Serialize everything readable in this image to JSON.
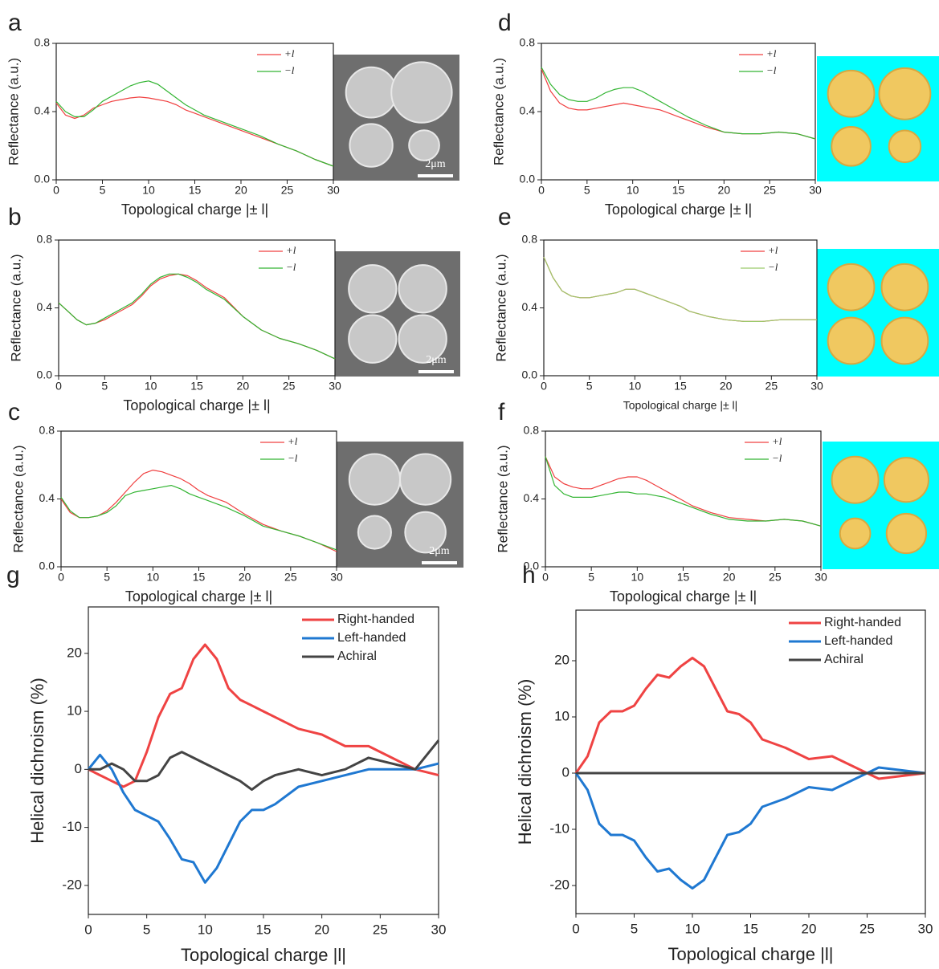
{
  "chart_data": [
    {
      "type": "line",
      "label": "a",
      "xlabel": "Topological charge |± l|",
      "ylabel": "Reflectance (a.u.)",
      "legend": "upper right",
      "scale_bar": "2μm",
      "x": [
        0,
        1,
        2,
        3,
        4,
        5,
        6,
        7,
        8,
        9,
        10,
        11,
        12,
        13,
        14,
        15,
        16,
        18,
        20,
        22,
        24,
        26,
        28,
        30
      ],
      "series": [
        {
          "name": "+l",
          "color": "#f04040",
          "values": [
            0.45,
            0.38,
            0.36,
            0.38,
            0.42,
            0.44,
            0.46,
            0.47,
            0.48,
            0.485,
            0.48,
            0.47,
            0.46,
            0.44,
            0.41,
            0.39,
            0.37,
            0.33,
            0.29,
            0.25,
            0.21,
            0.17,
            0.12,
            0.08
          ]
        },
        {
          "name": "−l",
          "color": "#33b533",
          "values": [
            0.46,
            0.4,
            0.37,
            0.37,
            0.41,
            0.46,
            0.49,
            0.52,
            0.55,
            0.57,
            0.58,
            0.56,
            0.52,
            0.48,
            0.44,
            0.41,
            0.38,
            0.34,
            0.3,
            0.26,
            0.21,
            0.17,
            0.12,
            0.08
          ]
        }
      ],
      "xlim": [
        0,
        30
      ],
      "ylim": [
        0,
        0.8
      ],
      "xticks": [
        0,
        5,
        10,
        15,
        20,
        25,
        30
      ],
      "yticks": [
        {
          "value": 0,
          "label": "0.0"
        },
        {
          "value": 0.4,
          "label": "0.4"
        },
        {
          "value": 0.8,
          "label": "0.8"
        }
      ]
    },
    {
      "type": "line",
      "label": "b",
      "xlabel": "Topological charge |± l|",
      "ylabel": "Reflectance (a.u.)",
      "legend": "upper right",
      "scale_bar": "2μm",
      "x": [
        0,
        1,
        2,
        3,
        4,
        5,
        6,
        7,
        8,
        9,
        10,
        11,
        12,
        13,
        14,
        15,
        16,
        18,
        20,
        22,
        24,
        26,
        28,
        30
      ],
      "series": [
        {
          "name": "+l",
          "color": "#f04040",
          "values": [
            0.43,
            0.38,
            0.33,
            0.3,
            0.31,
            0.33,
            0.36,
            0.39,
            0.42,
            0.47,
            0.53,
            0.57,
            0.59,
            0.6,
            0.59,
            0.56,
            0.52,
            0.46,
            0.35,
            0.27,
            0.22,
            0.19,
            0.15,
            0.1
          ]
        },
        {
          "name": "−l",
          "color": "#33b533",
          "values": [
            0.43,
            0.38,
            0.33,
            0.3,
            0.31,
            0.34,
            0.37,
            0.4,
            0.43,
            0.48,
            0.54,
            0.58,
            0.6,
            0.6,
            0.58,
            0.55,
            0.51,
            0.45,
            0.35,
            0.27,
            0.22,
            0.19,
            0.15,
            0.1
          ]
        }
      ],
      "xlim": [
        0,
        30
      ],
      "ylim": [
        0,
        0.8
      ],
      "xticks": [
        0,
        5,
        10,
        15,
        20,
        25,
        30
      ],
      "yticks": [
        {
          "value": 0,
          "label": "0.0"
        },
        {
          "value": 0.4,
          "label": "0.4"
        },
        {
          "value": 0.8,
          "label": "0.8"
        }
      ]
    },
    {
      "type": "line",
      "label": "c",
      "xlabel": "Topological charge |± l|",
      "ylabel": "Reflectance (a.u.)",
      "legend": "upper right",
      "scale_bar": "2μm",
      "x": [
        0,
        1,
        2,
        3,
        4,
        5,
        6,
        7,
        8,
        9,
        10,
        11,
        12,
        13,
        14,
        15,
        16,
        18,
        20,
        22,
        24,
        26,
        28,
        30
      ],
      "series": [
        {
          "name": "+l",
          "color": "#f04040",
          "values": [
            0.4,
            0.32,
            0.29,
            0.29,
            0.3,
            0.33,
            0.38,
            0.44,
            0.5,
            0.55,
            0.57,
            0.56,
            0.54,
            0.52,
            0.49,
            0.45,
            0.42,
            0.38,
            0.31,
            0.25,
            0.21,
            0.18,
            0.14,
            0.09
          ]
        },
        {
          "name": "−l",
          "color": "#33b533",
          "values": [
            0.41,
            0.33,
            0.29,
            0.29,
            0.3,
            0.32,
            0.36,
            0.42,
            0.44,
            0.45,
            0.46,
            0.47,
            0.48,
            0.46,
            0.43,
            0.41,
            0.39,
            0.35,
            0.3,
            0.24,
            0.21,
            0.18,
            0.14,
            0.1
          ]
        }
      ],
      "xlim": [
        0,
        30
      ],
      "ylim": [
        0,
        0.8
      ],
      "xticks": [
        0,
        5,
        10,
        15,
        20,
        25,
        30
      ],
      "yticks": [
        {
          "value": 0,
          "label": "0.0"
        },
        {
          "value": 0.4,
          "label": "0.4"
        },
        {
          "value": 0.8,
          "label": "0.8"
        }
      ]
    },
    {
      "type": "line",
      "label": "d",
      "xlabel": "Topological charge |± l|",
      "ylabel": "Reflectance (a.u.)",
      "legend": "upper right",
      "x": [
        0,
        1,
        2,
        3,
        4,
        5,
        6,
        7,
        8,
        9,
        10,
        11,
        12,
        13,
        14,
        15,
        16,
        18,
        20,
        22,
        24,
        26,
        28,
        30
      ],
      "series": [
        {
          "name": "+l",
          "color": "#f04040",
          "values": [
            0.65,
            0.52,
            0.45,
            0.42,
            0.41,
            0.41,
            0.42,
            0.43,
            0.44,
            0.45,
            0.44,
            0.43,
            0.42,
            0.41,
            0.39,
            0.37,
            0.35,
            0.31,
            0.28,
            0.27,
            0.27,
            0.28,
            0.27,
            0.24
          ]
        },
        {
          "name": "−l",
          "color": "#33b533",
          "values": [
            0.66,
            0.56,
            0.5,
            0.47,
            0.46,
            0.46,
            0.48,
            0.51,
            0.53,
            0.54,
            0.54,
            0.52,
            0.49,
            0.46,
            0.43,
            0.4,
            0.37,
            0.32,
            0.28,
            0.27,
            0.27,
            0.28,
            0.27,
            0.24
          ]
        }
      ],
      "xlim": [
        0,
        30
      ],
      "ylim": [
        0,
        0.8
      ],
      "xticks": [
        0,
        5,
        10,
        15,
        20,
        25,
        30
      ],
      "yticks": [
        {
          "value": 0,
          "label": "0.0"
        },
        {
          "value": 0.4,
          "label": "0.4"
        },
        {
          "value": 0.8,
          "label": "0.8"
        }
      ]
    },
    {
      "type": "line",
      "label": "e",
      "xlabel": "Topological charge |± l|",
      "ylabel": "Reflectance (a.u.)",
      "legend": "upper right",
      "x": [
        0,
        1,
        2,
        3,
        4,
        5,
        6,
        7,
        8,
        9,
        10,
        11,
        12,
        13,
        14,
        15,
        16,
        18,
        20,
        22,
        24,
        26,
        28,
        30
      ],
      "series": [
        {
          "name": "+l",
          "color": "#f04040",
          "values": [
            0.7,
            0.58,
            0.5,
            0.47,
            0.46,
            0.46,
            0.47,
            0.48,
            0.49,
            0.51,
            0.51,
            0.49,
            0.47,
            0.45,
            0.43,
            0.41,
            0.38,
            0.35,
            0.33,
            0.32,
            0.32,
            0.33,
            0.33,
            0.33
          ]
        },
        {
          "name": "−l",
          "color": "#9bc96b",
          "values": [
            0.7,
            0.58,
            0.5,
            0.47,
            0.46,
            0.46,
            0.47,
            0.48,
            0.49,
            0.51,
            0.51,
            0.49,
            0.47,
            0.45,
            0.43,
            0.41,
            0.38,
            0.35,
            0.33,
            0.32,
            0.32,
            0.33,
            0.33,
            0.33
          ]
        }
      ],
      "xlim": [
        0,
        30
      ],
      "ylim": [
        0,
        0.8
      ],
      "xticks": [
        0,
        5,
        10,
        15,
        20,
        25,
        30
      ],
      "yticks": [
        {
          "value": 0,
          "label": "0.0"
        },
        {
          "value": 0.4,
          "label": "0.4"
        },
        {
          "value": 0.8,
          "label": "0.8"
        }
      ]
    },
    {
      "type": "line",
      "label": "f",
      "xlabel": "Topological charge |± l|",
      "ylabel": "Reflectance (a.u.)",
      "legend": "upper right",
      "x": [
        0,
        1,
        2,
        3,
        4,
        5,
        6,
        7,
        8,
        9,
        10,
        11,
        12,
        13,
        14,
        15,
        16,
        18,
        20,
        22,
        24,
        26,
        28,
        30
      ],
      "series": [
        {
          "name": "+l",
          "color": "#f04040",
          "values": [
            0.65,
            0.53,
            0.49,
            0.47,
            0.46,
            0.46,
            0.48,
            0.5,
            0.52,
            0.53,
            0.53,
            0.51,
            0.48,
            0.45,
            0.42,
            0.39,
            0.36,
            0.32,
            0.29,
            0.28,
            0.27,
            0.28,
            0.27,
            0.24
          ]
        },
        {
          "name": "−l",
          "color": "#33b533",
          "values": [
            0.65,
            0.48,
            0.43,
            0.41,
            0.41,
            0.41,
            0.42,
            0.43,
            0.44,
            0.44,
            0.43,
            0.43,
            0.42,
            0.41,
            0.39,
            0.37,
            0.35,
            0.31,
            0.28,
            0.27,
            0.27,
            0.28,
            0.27,
            0.24
          ]
        }
      ],
      "xlim": [
        0,
        30
      ],
      "ylim": [
        0,
        0.8
      ],
      "xticks": [
        0,
        5,
        10,
        15,
        20,
        25,
        30
      ],
      "yticks": [
        {
          "value": 0,
          "label": "0.0"
        },
        {
          "value": 0.4,
          "label": "0.4"
        },
        {
          "value": 0.8,
          "label": "0.8"
        }
      ]
    },
    {
      "type": "line",
      "label": "g",
      "xlabel": "Topological charge |l|",
      "ylabel": "Helical dichroism (%)",
      "legend": "upper right",
      "x": [
        0,
        1,
        2,
        3,
        4,
        5,
        6,
        7,
        8,
        9,
        10,
        11,
        12,
        13,
        14,
        15,
        16,
        18,
        20,
        22,
        24,
        26,
        28,
        30
      ],
      "series": [
        {
          "name": "Right-handed",
          "color": "#ef4343",
          "values": [
            0,
            -1,
            -2,
            -3,
            -2,
            3,
            9,
            13,
            14,
            19,
            21.5,
            19,
            14,
            12,
            11,
            10,
            9,
            7,
            6,
            4,
            4,
            2,
            0,
            -1
          ]
        },
        {
          "name": "Left-handed",
          "color": "#1f78d1",
          "values": [
            0,
            2.5,
            0,
            -4,
            -7,
            -8,
            -9,
            -12,
            -15.5,
            -16,
            -19.5,
            -17,
            -13,
            -9,
            -7,
            -7,
            -6,
            -3,
            -2,
            -1,
            0,
            0,
            0,
            1
          ]
        },
        {
          "name": "Achiral",
          "color": "#444444",
          "values": [
            0,
            0,
            1,
            0,
            -2,
            -2,
            -1,
            2,
            3,
            2,
            1,
            0,
            -1,
            -2,
            -3.5,
            -2,
            -1,
            0,
            -1,
            0,
            2,
            1,
            0,
            5
          ]
        }
      ],
      "xlim": [
        0,
        30
      ],
      "ylim": [
        -25,
        28
      ],
      "xticks": [
        0,
        5,
        10,
        15,
        20,
        25,
        30
      ],
      "yticks": [
        -20,
        -10,
        0,
        10,
        20
      ]
    },
    {
      "type": "line",
      "label": "h",
      "xlabel": "Topological charge |l|",
      "ylabel": "Helical dichroism (%)",
      "legend": "upper right",
      "x": [
        0,
        1,
        2,
        3,
        4,
        5,
        6,
        7,
        8,
        9,
        10,
        11,
        12,
        13,
        14,
        15,
        16,
        18,
        20,
        22,
        24,
        26,
        28,
        30
      ],
      "series": [
        {
          "name": "Right-handed",
          "color": "#ef4343",
          "values": [
            0,
            3,
            9,
            11,
            11,
            12,
            15,
            17.5,
            17,
            19,
            20.5,
            19,
            15,
            11,
            10.5,
            9,
            6,
            4.5,
            2.5,
            3,
            1,
            -1,
            -0.5,
            0
          ]
        },
        {
          "name": "Left-handed",
          "color": "#1f78d1",
          "values": [
            0,
            -3,
            -9,
            -11,
            -11,
            -12,
            -15,
            -17.5,
            -17,
            -19,
            -20.5,
            -19,
            -15,
            -11,
            -10.5,
            -9,
            -6,
            -4.5,
            -2.5,
            -3,
            -1,
            1,
            0.5,
            0
          ]
        },
        {
          "name": "Achiral",
          "color": "#444444",
          "values": [
            0,
            0,
            0,
            0,
            0,
            0,
            0,
            0,
            0,
            0,
            0,
            0,
            0,
            0,
            0,
            0,
            0,
            0,
            0,
            0,
            0,
            0,
            0,
            0
          ]
        }
      ],
      "xlim": [
        0,
        30
      ],
      "ylim": [
        -25,
        29
      ],
      "xticks": [
        0,
        5,
        10,
        15,
        20,
        25,
        30
      ],
      "yticks": [
        -20,
        -10,
        0,
        10,
        20
      ]
    }
  ]
}
